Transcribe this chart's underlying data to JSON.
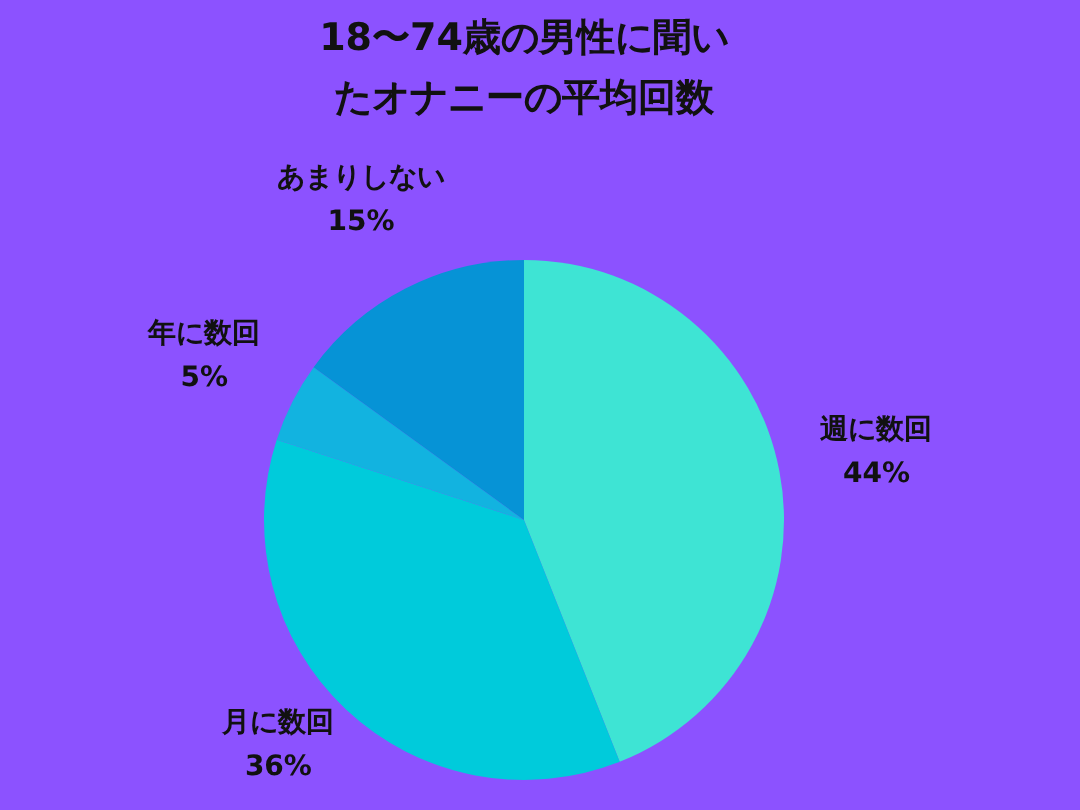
{
  "chart_data": {
    "type": "pie",
    "title": "18〜74歳の男性に聞いたオナニーの平均回数",
    "categories": [
      "週に数回",
      "月に数回",
      "年に数回",
      "あまりしない"
    ],
    "values": [
      44,
      36,
      5,
      15
    ],
    "colors": [
      "#3ee4d4",
      "#00cbdb",
      "#12b3e0",
      "#0693d6"
    ],
    "value_labels": [
      "44%",
      "36%",
      "5%",
      "15%"
    ],
    "legend": false
  }
}
